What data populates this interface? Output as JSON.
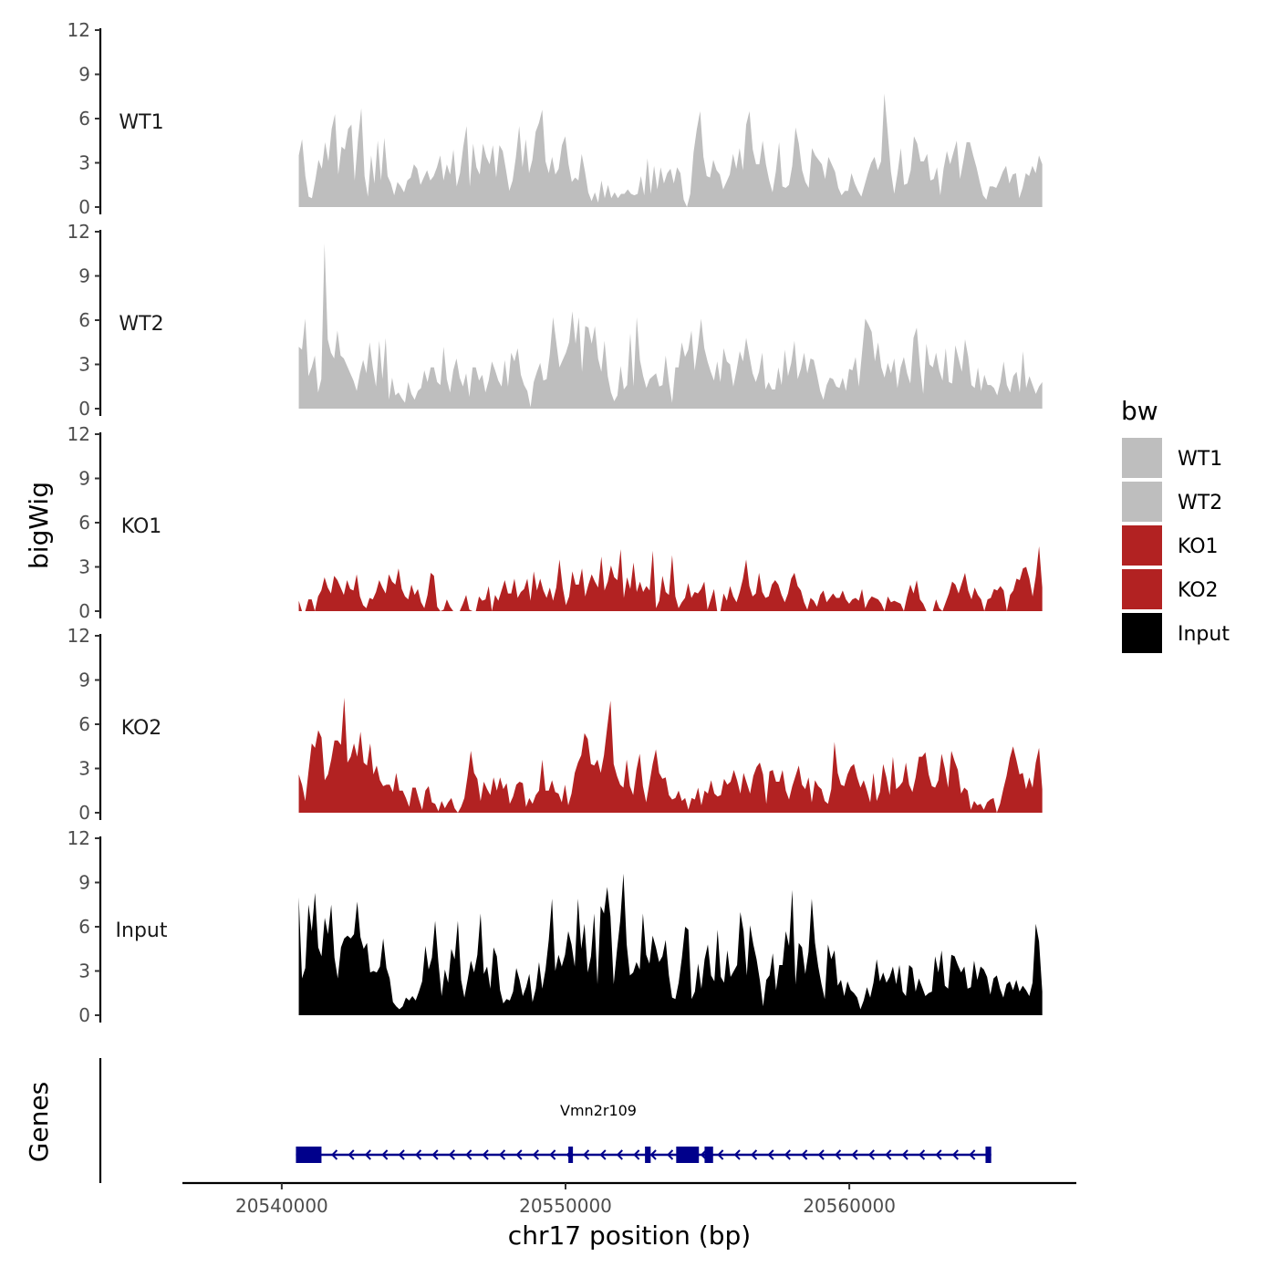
{
  "chart_data": {
    "type": "area",
    "title": "",
    "ylabel": "bigWig",
    "xlabel": "chr17 position (bp)",
    "genes_label": "Genes",
    "ylim": [
      0,
      12
    ],
    "yticks": [
      0,
      3,
      6,
      9,
      12
    ],
    "xlim": [
      20536500,
      20568000
    ],
    "xticks": [
      20540000,
      20550000,
      20560000
    ],
    "xtick_labels": [
      "20540000",
      "20550000",
      "20560000"
    ],
    "data_range": [
      20540600,
      20566800
    ],
    "legend": {
      "title": "bw",
      "position": "right",
      "entries": [
        {
          "name": "WT1",
          "color": "#bebebe"
        },
        {
          "name": "WT2",
          "color": "#bebebe"
        },
        {
          "name": "KO1",
          "color": "#b22222"
        },
        {
          "name": "KO2",
          "color": "#b22222"
        },
        {
          "name": "Input",
          "color": "#000000"
        }
      ]
    },
    "series": [
      {
        "name": "WT1",
        "color": "#bebebe",
        "values": [
          3.5,
          4.6,
          2.1,
          0.7,
          0.6,
          1.8,
          3.2,
          2.6,
          4.4,
          3.1,
          5.3,
          6.3,
          2.2,
          4.1,
          3.9,
          5.3,
          5.6,
          1.8,
          4.6,
          6.7,
          2.1,
          0.7,
          3.5,
          1.6,
          4.5,
          1.8,
          4.7,
          2.1,
          1.6,
          0.8,
          1.7,
          1.4,
          1.0,
          1.8,
          2.0,
          2.9,
          2.6,
          1.5,
          2.0,
          2.5,
          1.8,
          2.1,
          2.7,
          3.5,
          1.8,
          2.9,
          2.2,
          3.9,
          1.4,
          2.3,
          4.1,
          5.5,
          1.4,
          4.3,
          2.7,
          2.2,
          4.3,
          3.4,
          2.9,
          4.2,
          2.0,
          4.2,
          3.8,
          2.5,
          1.1,
          1.8,
          3.4,
          5.5,
          2.7,
          4.6,
          2.3,
          3.2,
          5.1,
          5.7,
          6.6,
          3.1,
          2.3,
          3.4,
          2.2,
          2.6,
          4.2,
          4.8,
          2.9,
          1.7,
          2.0,
          1.8,
          3.6,
          2.4,
          1.0,
          0.4,
          1.0,
          0.3,
          1.8,
          0.6,
          1.5,
          0.6,
          1.0,
          0.6,
          0.9,
          0.9,
          1.2,
          0.9,
          0.8,
          0.9,
          2.1,
          0.8,
          3.3,
          0.9,
          2.8,
          1.2,
          2.7,
          1.6,
          2.3,
          2.6,
          1.6,
          2.7,
          2.3,
          0.5,
          0.0,
          0.9,
          3.7,
          5.3,
          6.5,
          3.4,
          2.1,
          2.0,
          3.2,
          2.5,
          2.2,
          1.2,
          1.7,
          2.2,
          3.6,
          2.6,
          4.0,
          2.5,
          5.6,
          6.5,
          3.9,
          2.9,
          2.9,
          4.5,
          2.9,
          1.8,
          1.0,
          2.4,
          4.4,
          1.4,
          1.3,
          1.5,
          2.8,
          5.4,
          4.3,
          2.5,
          1.7,
          1.3,
          4.0,
          3.5,
          3.2,
          2.9,
          1.9,
          3.4,
          2.9,
          2.4,
          1.3,
          0.8,
          1.1,
          1.1,
          2.3,
          1.6,
          1.1,
          0.7,
          1.5,
          2.3,
          3.0,
          3.4,
          2.5,
          3.1,
          7.7,
          5.1,
          2.4,
          0.9,
          2.3,
          4.0,
          1.5,
          1.6,
          2.5,
          4.8,
          4.3,
          3.1,
          3.1,
          3.6,
          1.8,
          1.9,
          2.7,
          0.8,
          2.6,
          3.8,
          2.9,
          3.7,
          4.5,
          1.9,
          3.1,
          4.4,
          4.4,
          3.5,
          2.7,
          1.7,
          0.8,
          0.5,
          1.4,
          1.4,
          1.3,
          1.8,
          2.4,
          2.8,
          1.6,
          2.2,
          2.3,
          0.6,
          1.3,
          2.3,
          2.1,
          2.8,
          2.3,
          3.5,
          2.9
        ]
      },
      {
        "name": "WT2",
        "color": "#bebebe",
        "values": [
          4.2,
          4.0,
          6.1,
          2.2,
          2.8,
          3.6,
          1.1,
          2.0,
          11.2,
          4.7,
          3.8,
          3.4,
          5.3,
          3.6,
          3.4,
          2.9,
          2.4,
          1.9,
          1.2,
          2.4,
          3.3,
          2.4,
          4.5,
          2.8,
          1.5,
          4.6,
          2.0,
          4.8,
          0.6,
          2.1,
          0.9,
          1.1,
          0.7,
          0.4,
          1.8,
          1.0,
          0.6,
          1.2,
          1.4,
          2.6,
          1.8,
          2.8,
          2.8,
          1.8,
          1.6,
          4.2,
          2.0,
          1.1,
          2.6,
          3.4,
          2.1,
          1.5,
          2.4,
          0.8,
          2.8,
          2.8,
          1.9,
          2.3,
          1.1,
          1.9,
          3.2,
          2.6,
          1.9,
          1.5,
          3.3,
          1.5,
          3.8,
          3.2,
          4.1,
          2.3,
          1.6,
          1.2,
          0.1,
          1.8,
          2.5,
          3.1,
          1.9,
          2.0,
          3.7,
          6.2,
          4.5,
          2.8,
          3.3,
          3.8,
          4.5,
          6.6,
          4.4,
          6.2,
          2.5,
          5.6,
          5.5,
          4.4,
          5.6,
          3.4,
          2.5,
          4.6,
          2.2,
          1.1,
          0.5,
          0.9,
          2.9,
          1.3,
          1.6,
          5.1,
          1.5,
          6.2,
          3.3,
          2.2,
          1.4,
          2.0,
          2.2,
          2.4,
          1.5,
          1.6,
          3.6,
          1.8,
          0.4,
          2.8,
          2.8,
          4.5,
          3.5,
          4.0,
          5.3,
          2.6,
          4.2,
          6.1,
          4.1,
          3.2,
          2.5,
          1.9,
          3.2,
          1.8,
          4.1,
          3.2,
          3.0,
          1.5,
          2.6,
          3.9,
          3.2,
          4.8,
          3.6,
          2.4,
          1.8,
          2.5,
          3.8,
          1.3,
          1.8,
          1.3,
          1.3,
          2.8,
          1.6,
          4.0,
          2.2,
          3.1,
          4.6,
          2.0,
          2.7,
          3.8,
          2.4,
          3.4,
          3.3,
          2.3,
          1.2,
          0.6,
          1.6,
          2.1,
          2.0,
          1.5,
          1.4,
          2.1,
          1.2,
          2.7,
          2.6,
          3.5,
          1.5,
          3.8,
          6.1,
          5.7,
          5.2,
          3.2,
          4.5,
          2.8,
          2.1,
          3.1,
          2.4,
          3.4,
          1.4,
          2.8,
          3.5,
          2.4,
          1.7,
          4.8,
          5.5,
          2.9,
          1.0,
          4.4,
          3.0,
          2.8,
          3.8,
          2.6,
          1.9,
          4.1,
          1.8,
          1.7,
          4.3,
          3.4,
          2.5,
          4.7,
          3.5,
          1.6,
          1.4,
          2.8,
          1.2,
          2.3,
          1.6,
          1.6,
          1.4,
          0.9,
          1.8,
          3.2,
          1.6,
          1.1,
          2.2,
          2.5,
          1.1,
          3.9,
          1.4,
          2.2,
          1.6,
          1.0,
          1.5,
          1.8
        ]
      },
      {
        "name": "KO1",
        "color": "#b22222",
        "values": [
          0.7,
          0.0,
          0.0,
          0.8,
          0.8,
          0.0,
          1.0,
          1.4,
          2.3,
          1.6,
          1.2,
          2.4,
          2.1,
          1.6,
          1.1,
          2.1,
          1.5,
          1.4,
          2.5,
          1.0,
          0.4,
          0.2,
          0.9,
          0.8,
          1.3,
          2.1,
          1.6,
          1.2,
          2.5,
          2.0,
          1.8,
          2.9,
          1.5,
          1.0,
          0.8,
          1.8,
          1.1,
          1.5,
          0.6,
          0.2,
          1.1,
          2.6,
          2.4,
          0.3,
          0.0,
          0.1,
          0.8,
          0.3,
          0.0,
          0.0,
          0.0,
          0.5,
          1.1,
          0.1,
          0.0,
          0.0,
          1.0,
          0.7,
          0.8,
          1.7,
          0.0,
          1.1,
          0.7,
          1.4,
          2.1,
          1.2,
          1.2,
          2.2,
          0.9,
          1.3,
          1.5,
          2.2,
          0.7,
          2.7,
          1.4,
          2.2,
          1.4,
          0.9,
          1.6,
          0.7,
          1.6,
          3.5,
          1.6,
          0.4,
          1.0,
          2.7,
          1.8,
          1.8,
          2.9,
          1.0,
          1.8,
          2.5,
          2.0,
          1.6,
          3.7,
          1.4,
          2.0,
          3.1,
          2.3,
          2.1,
          4.2,
          0.9,
          2.3,
          1.5,
          3.3,
          1.3,
          2.0,
          1.3,
          1.7,
          1.4,
          4.1,
          0.2,
          0.7,
          2.4,
          1.3,
          1.1,
          3.8,
          1.0,
          0.2,
          0.6,
          0.9,
          1.9,
          0.9,
          1.3,
          1.2,
          1.5,
          2.0,
          0.1,
          0.8,
          1.5,
          0.0,
          0.0,
          1.2,
          0.7,
          1.7,
          1.0,
          0.6,
          1.3,
          2.2,
          3.5,
          1.7,
          1.0,
          1.2,
          2.6,
          1.3,
          0.9,
          1.0,
          1.8,
          2.1,
          1.8,
          1.1,
          0.6,
          1.2,
          2.2,
          2.6,
          1.7,
          1.4,
          0.6,
          0.1,
          0.9,
          0.7,
          0.3,
          1.1,
          1.4,
          0.6,
          0.9,
          1.2,
          0.9,
          0.9,
          1.4,
          0.8,
          0.5,
          0.8,
          0.9,
          0.7,
          1.5,
          0.2,
          0.7,
          1.0,
          0.9,
          0.8,
          0.5,
          0.0,
          1.0,
          0.6,
          0.7,
          0.6,
          0.5,
          0.0,
          1.0,
          1.8,
          1.2,
          2.1,
          0.8,
          0.5,
          0.0,
          0.0,
          0.0,
          0.8,
          0.2,
          0.0,
          0.6,
          1.2,
          2.0,
          1.8,
          1.2,
          1.9,
          2.6,
          1.4,
          0.8,
          1.6,
          1.1,
          0.8,
          0.0,
          0.8,
          0.9,
          1.5,
          1.4,
          1.7,
          1.4,
          0.0,
          1.1,
          1.4,
          2.2,
          2.1,
          2.9,
          3.0,
          2.2,
          1.0,
          2.4,
          4.4,
          1.6
        ]
      },
      {
        "name": "KO2",
        "color": "#b22222",
        "values": [
          2.6,
          1.9,
          0.8,
          2.8,
          4.7,
          4.4,
          5.6,
          5.1,
          2.2,
          2.6,
          3.6,
          4.9,
          4.9,
          4.6,
          7.8,
          3.4,
          3.8,
          4.7,
          3.8,
          5.5,
          3.4,
          3.2,
          4.7,
          2.6,
          3.2,
          2.2,
          1.8,
          1.9,
          1.9,
          1.4,
          2.7,
          1.5,
          1.5,
          1.0,
          0.4,
          1.7,
          1.7,
          0.9,
          0.2,
          1.5,
          1.8,
          0.7,
          0.6,
          0.1,
          0.8,
          0.3,
          0.7,
          1.0,
          0.3,
          0.0,
          0.4,
          1.0,
          2.5,
          4.2,
          2.7,
          2.3,
          0.8,
          2.1,
          1.6,
          1.2,
          2.4,
          1.5,
          2.4,
          1.6,
          2.0,
          0.6,
          1.1,
          1.9,
          2.1,
          2.0,
          0.4,
          1.0,
          0.6,
          1.2,
          1.5,
          3.6,
          1.5,
          1.5,
          2.2,
          1.4,
          1.3,
          0.7,
          1.9,
          0.5,
          1.3,
          2.7,
          3.4,
          3.9,
          5.4,
          5.0,
          3.3,
          3.2,
          3.6,
          2.7,
          3.9,
          5.8,
          7.6,
          3.3,
          2.5,
          1.9,
          1.7,
          3.6,
          1.8,
          1.2,
          2.9,
          4.0,
          1.8,
          0.7,
          2.0,
          3.3,
          4.3,
          2.7,
          2.3,
          2.4,
          1.2,
          0.9,
          1.0,
          1.5,
          0.8,
          1.0,
          0.2,
          1.0,
          0.9,
          1.7,
          0.5,
          1.5,
          1.3,
          2.2,
          1.3,
          1.1,
          1.2,
          2.3,
          1.9,
          2.1,
          2.9,
          2.2,
          1.3,
          2.7,
          2.0,
          1.3,
          2.5,
          3.1,
          3.4,
          2.6,
          0.6,
          2.8,
          2.9,
          2.1,
          2.1,
          2.9,
          1.5,
          0.9,
          1.8,
          2.5,
          3.2,
          1.9,
          1.6,
          2.4,
          0.7,
          2.2,
          1.8,
          1.6,
          0.8,
          0.6,
          1.6,
          4.8,
          2.7,
          1.9,
          1.8,
          2.6,
          3.1,
          3.3,
          2.4,
          1.7,
          2.2,
          1.5,
          0.7,
          2.7,
          0.8,
          1.4,
          3.3,
          2.4,
          1.2,
          3.8,
          1.6,
          1.8,
          2.1,
          3.4,
          1.9,
          1.4,
          2.4,
          3.8,
          3.8,
          4.1,
          2.6,
          1.8,
          1.7,
          2.2,
          4.0,
          3.0,
          1.7,
          4.2,
          3.5,
          2.9,
          1.3,
          1.7,
          1.5,
          0.2,
          0.8,
          0.5,
          0.6,
          0.2,
          0.7,
          0.9,
          1.0,
          0.0,
          0.6,
          1.6,
          2.5,
          3.7,
          4.5,
          3.6,
          2.6,
          2.7,
          1.6,
          2.4,
          1.7,
          3.4,
          4.4,
          1.6
        ]
      },
      {
        "name": "Input",
        "color": "#000000",
        "values": [
          8.0,
          2.5,
          3.2,
          7.5,
          5.7,
          8.3,
          4.6,
          4.0,
          6.6,
          5.5,
          7.5,
          3.9,
          2.5,
          4.6,
          5.2,
          5.4,
          5.2,
          5.5,
          7.7,
          5.3,
          4.5,
          4.9,
          2.9,
          3.0,
          2.9,
          3.3,
          5.2,
          3.2,
          2.5,
          0.9,
          0.6,
          0.4,
          0.6,
          1.2,
          1.0,
          1.3,
          1.0,
          1.6,
          2.3,
          4.7,
          3.1,
          3.9,
          6.4,
          3.6,
          1.3,
          3.1,
          2.2,
          4.5,
          3.8,
          6.4,
          2.4,
          1.2,
          2.4,
          3.7,
          2.9,
          4.1,
          6.9,
          2.8,
          3.3,
          1.8,
          4.6,
          4.0,
          1.7,
          0.8,
          1.1,
          1.0,
          1.6,
          3.2,
          2.4,
          1.3,
          1.9,
          2.8,
          0.9,
          1.8,
          3.6,
          1.8,
          3.1,
          5.1,
          7.9,
          3.0,
          4.1,
          3.3,
          4.1,
          5.7,
          4.8,
          3.3,
          7.9,
          4.5,
          6.2,
          2.9,
          4.0,
          6.9,
          2.1,
          7.4,
          6.9,
          8.7,
          6.7,
          2.1,
          4.4,
          6.4,
          9.6,
          4.8,
          2.7,
          2.9,
          3.6,
          3.1,
          6.9,
          4.1,
          3.5,
          5.4,
          4.6,
          3.6,
          4.0,
          5.1,
          2.7,
          1.2,
          1.1,
          2.2,
          3.9,
          6.0,
          5.8,
          1.1,
          1.6,
          3.5,
          1.8,
          3.8,
          4.8,
          2.7,
          2.3,
          5.8,
          2.6,
          2.2,
          4.4,
          2.6,
          3.0,
          3.4,
          7.0,
          5.7,
          2.7,
          6.1,
          4.8,
          3.8,
          2.4,
          0.6,
          2.4,
          2.7,
          4.2,
          1.7,
          3.4,
          3.4,
          5.7,
          4.7,
          8.5,
          2.1,
          4.9,
          4.6,
          2.8,
          4.3,
          7.9,
          4.9,
          3.3,
          2.1,
          1.1,
          4.8,
          3.8,
          4.4,
          2.0,
          2.4,
          1.3,
          2.3,
          1.7,
          1.5,
          1.2,
          0.4,
          1.0,
          1.9,
          1.2,
          2.2,
          3.8,
          2.3,
          2.9,
          2.2,
          2.6,
          3.3,
          2.1,
          3.4,
          1.6,
          1.3,
          3.4,
          3.2,
          1.6,
          2.5,
          1.9,
          1.3,
          1.5,
          1.6,
          4.0,
          2.9,
          4.4,
          2.0,
          1.8,
          4.1,
          4.0,
          3.4,
          2.9,
          3.3,
          1.8,
          1.9,
          3.7,
          2.4,
          3.3,
          3.1,
          2.6,
          1.4,
          2.5,
          2.7,
          1.8,
          1.2,
          2.1,
          2.3,
          1.7,
          2.4,
          1.6,
          2.0,
          1.7,
          1.3,
          2.2,
          6.2,
          5.0,
          1.6
        ]
      }
    ],
    "gene": {
      "name": "Vmn2r109",
      "start": 20540500,
      "end": 20565000,
      "strand": "-",
      "color": "#00008b",
      "exons": [
        [
          20540500,
          20541400
        ],
        [
          20550100,
          20550200
        ],
        [
          20552800,
          20553000
        ],
        [
          20553900,
          20554700
        ],
        [
          20554900,
          20555200
        ],
        [
          20564800,
          20565000
        ]
      ]
    }
  }
}
